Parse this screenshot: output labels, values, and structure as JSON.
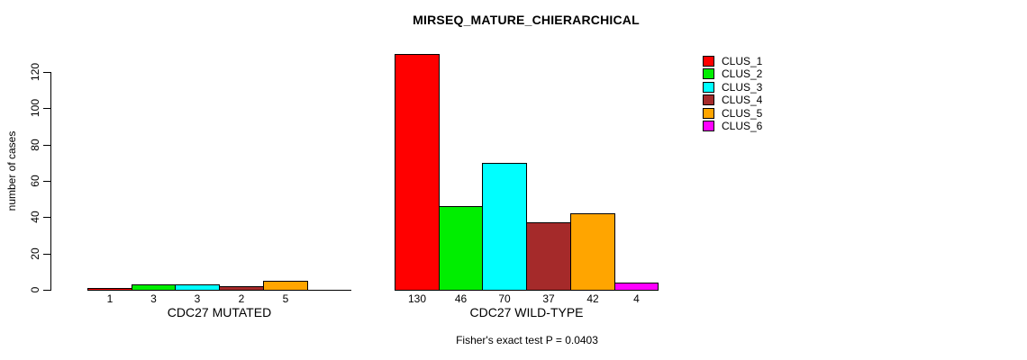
{
  "title": "MIRSEQ_MATURE_CHIERARCHICAL",
  "y_axis": {
    "label": "number of cases",
    "ticks": [
      0,
      20,
      40,
      60,
      80,
      100,
      120
    ]
  },
  "footnote": "Fisher's exact test P = 0.0403",
  "legend": {
    "items": [
      {
        "label": "CLUS_1",
        "color": "#FF0000"
      },
      {
        "label": "CLUS_2",
        "color": "#00EE00"
      },
      {
        "label": "CLUS_3",
        "color": "#00FFFF"
      },
      {
        "label": "CLUS_4",
        "color": "#A52A2A"
      },
      {
        "label": "CLUS_5",
        "color": "#FFA500"
      },
      {
        "label": "CLUS_6",
        "color": "#FF00FF"
      }
    ]
  },
  "chart_data": {
    "type": "bar",
    "title": "MIRSEQ_MATURE_CHIERARCHICAL",
    "ylabel": "number of cases",
    "ylim": [
      0,
      130
    ],
    "yticks": [
      0,
      20,
      40,
      60,
      80,
      100,
      120
    ],
    "grid": false,
    "legend_position": "right",
    "legend_entries": [
      "CLUS_1",
      "CLUS_2",
      "CLUS_3",
      "CLUS_4",
      "CLUS_5",
      "CLUS_6"
    ],
    "colors": [
      "#FF0000",
      "#00EE00",
      "#00FFFF",
      "#A52A2A",
      "#FFA500",
      "#FF00FF"
    ],
    "groups": [
      {
        "label": "CDC27 MUTATED",
        "values": [
          1,
          3,
          3,
          2,
          5,
          0
        ],
        "bar_labels": [
          "1",
          "3",
          "3",
          "2",
          "5",
          ""
        ]
      },
      {
        "label": "CDC27 WILD-TYPE",
        "values": [
          130,
          46,
          70,
          37,
          42,
          4
        ],
        "bar_labels": [
          "130",
          "46",
          "70",
          "37",
          "42",
          "4"
        ]
      }
    ],
    "annotation": "Fisher's exact test P = 0.0403"
  }
}
